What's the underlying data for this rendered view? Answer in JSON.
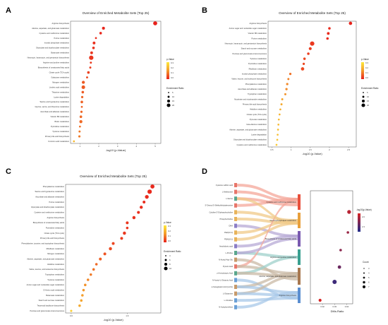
{
  "chart_data": [
    {
      "panel": "A",
      "type": "scatter",
      "title": "Overview of Enriched Metabolite Sets (Top 25)",
      "xlabel": "-log10 (p-Value)",
      "ylabel": "",
      "xlim": [
        0.5,
        5.3
      ],
      "xticks": [
        1,
        2,
        3,
        4,
        5
      ],
      "grid": false,
      "legend_position": "right",
      "color_legend": {
        "title": "p-Value",
        "ticks": [
          "0.3",
          "0.2",
          "0.1",
          "0.0"
        ]
      },
      "size_legend": {
        "title": "Enrichment Ratio",
        "ticks": [
          "5",
          "10",
          "15",
          "20"
        ]
      },
      "categories": [
        "Arginine biosynthesis",
        "Alanine, aspartate, and glutamate metabolism",
        "Cysteine and methionine metabolism",
        "Purine metabolism",
        "Inositol phosphate metabolism",
        "Glyoxylate and dicarboxylate metabolism",
        "Butanoate metabolism",
        "Neomycin, kanamycin, and gentamicin biosynthesis",
        "Arginine and proline metabolism",
        "Biosynthesis of unsaturated fatty acids",
        "Citrate cycle (TCA cycle)",
        "Galactose metabolism",
        "Nitrogen metabolism",
        "Linoleic acid metabolism",
        "Thiamine metabolism",
        "Lysine degradation",
        "Taurine and hypotaurine metabolism",
        "Glycine, serine, and threonine metabolism",
        "Ascorbate and aldarate metabolism",
        "Vitamin B6 metabolism",
        "Biotin metabolism",
        "Pyrimidine metabolism",
        "Tyrosine metabolism",
        "Primary bile acid biosynthesis",
        "D-Amino acid metabolism"
      ],
      "x": [
        5.0,
        2.25,
        2.1,
        1.85,
        1.75,
        1.72,
        1.62,
        1.6,
        1.58,
        1.55,
        1.45,
        1.38,
        1.18,
        1.18,
        1.15,
        1.12,
        1.1,
        1.1,
        1.08,
        1.05,
        1.05,
        1.0,
        0.98,
        0.97,
        0.68
      ],
      "p_value": [
        0.0,
        0.005,
        0.008,
        0.015,
        0.018,
        0.02,
        0.025,
        0.025,
        0.03,
        0.035,
        0.04,
        0.05,
        0.07,
        0.07,
        0.07,
        0.08,
        0.08,
        0.08,
        0.085,
        0.09,
        0.09,
        0.1,
        0.11,
        0.11,
        0.21
      ],
      "enrichment_ratio": [
        17,
        10,
        8,
        4,
        9,
        8,
        9,
        19,
        5,
        5,
        8,
        5,
        11,
        14,
        8,
        6,
        8,
        4,
        6,
        8,
        11,
        4,
        5,
        6,
        4
      ]
    },
    {
      "panel": "B",
      "type": "scatter",
      "title": "Overview of Enriched Metabolite Sets (Top 25)",
      "xlabel": "-log10 (p-Value)",
      "ylabel": "",
      "xlim": [
        0.4,
        2.7
      ],
      "xticks": [
        0.5,
        1.0,
        1.5,
        2.0,
        2.5
      ],
      "grid": false,
      "legend_position": "right",
      "color_legend": {
        "title": "p-Value",
        "ticks": [
          "0.3",
          "0.2",
          "0.1",
          "0.0"
        ]
      },
      "size_legend": {
        "title": "Enrichment Ratio",
        "ticks": [
          "5",
          "10",
          "15",
          "20"
        ]
      },
      "categories": [
        "Arginine biosynthesis",
        "Amino sugar and nucleotide sugar metabolism",
        "Vitamin B6 metabolism",
        "Purine metabolism",
        "Neomycin, kanamycin, and gentamicin biosynthesis",
        "Starch and sucrose metabolism",
        "Pentose and glucuronate interconversions",
        "Tyrosine metabolism",
        "Pyrimidine metabolism",
        "Riboflavin metabolism",
        "Inositol phosphate metabolism",
        "Valine, leucine, and isoleucine biosynthesis",
        "Phenylalanine metabolism",
        "Ascorbate and aldarate metabolism",
        "Tryptophan metabolism",
        "Nicotinate and nicotinamide metabolism",
        "Primary bile acid biosynthesis",
        "Histidine metabolism",
        "Citrate cycle (TCA cycle)",
        "Pyruvate metabolism",
        "beta-Alanine metabolism",
        "Alanine, aspartate, and glutamate metabolism",
        "Lysine degradation",
        "Glyoxylate and dicarboxylate metabolism",
        "Cysteine and methionine metabolism"
      ],
      "x": [
        2.55,
        2.0,
        1.97,
        1.95,
        1.55,
        1.5,
        1.45,
        1.35,
        1.33,
        1.3,
        0.98,
        0.93,
        0.9,
        0.88,
        0.85,
        0.77,
        0.75,
        0.72,
        0.7,
        0.68,
        0.67,
        0.66,
        0.65,
        0.64,
        0.62
      ],
      "p_value": [
        0.003,
        0.01,
        0.011,
        0.011,
        0.028,
        0.032,
        0.035,
        0.045,
        0.047,
        0.05,
        0.1,
        0.12,
        0.13,
        0.13,
        0.14,
        0.17,
        0.18,
        0.19,
        0.2,
        0.21,
        0.21,
        0.22,
        0.22,
        0.23,
        0.24
      ],
      "enrichment_ratio": [
        10,
        6,
        7,
        6,
        15,
        8,
        6,
        6,
        5,
        10,
        5,
        4,
        5,
        5,
        4,
        4,
        4,
        3,
        3,
        3,
        3,
        3,
        3,
        3,
        3
      ]
    },
    {
      "panel": "C",
      "type": "scatter",
      "title": "Overview of Enriched Metabolite Sets (Top 25)",
      "xlabel": "-log10 (p-Value)",
      "ylabel": "",
      "xlim": [
        0.5,
        2.2
      ],
      "xticks": [
        0.6,
        1.6
      ],
      "grid": false,
      "legend_position": "right",
      "color_legend": {
        "title": "p-Value",
        "ticks": [
          "0.3",
          "0.2",
          "0.1",
          "0.0"
        ]
      },
      "size_legend": {
        "title": "Enrichment Ratio",
        "ticks": [
          "4",
          "6",
          "8",
          "10"
        ]
      },
      "categories": [
        "Phenylalanine metabolism",
        "Taurine and hypotaurine metabolism",
        "Ascorbate and aldarate metabolism",
        "Purine metabolism",
        "Glyoxylate and dicarboxylate metabolism",
        "Cysteine and methionine metabolism",
        "Arginine biosynthesis",
        "Biosynthesis of unsaturated fatty acids",
        "Pyrimidine metabolism",
        "Citrate cycle (TCA cycle)",
        "Primary bile acid biosynthesis",
        "Phenylalanine, tyrosine, and tryptophan biosynthesis",
        "Riboflavin metabolism",
        "Nitrogen metabolism",
        "Alanine, aspartate, and glutamate metabolism",
        "Histidine metabolism",
        "Valine, leucine, and isoleucine biosynthesis",
        "Tryptophan metabolism",
        "Tyrosine metabolism",
        "Amino sugar and nucleotide sugar metabolism",
        "D-Amino acid metabolism",
        "Butanoate metabolism",
        "Starch and sucrose metabolism",
        "Terpenoid backbone biosynthesis",
        "Pentose and glucuronate interconversions"
      ],
      "x": [
        2.05,
        2.0,
        1.95,
        1.9,
        1.85,
        1.8,
        1.72,
        1.6,
        1.6,
        1.55,
        1.5,
        1.35,
        1.3,
        1.2,
        1.12,
        1.05,
        1.0,
        0.95,
        0.9,
        0.85,
        0.82,
        0.8,
        0.78,
        0.75,
        0.6
      ],
      "p_value": [
        0.009,
        0.01,
        0.011,
        0.013,
        0.014,
        0.016,
        0.019,
        0.025,
        0.025,
        0.028,
        0.032,
        0.045,
        0.05,
        0.063,
        0.076,
        0.089,
        0.1,
        0.11,
        0.126,
        0.14,
        0.15,
        0.16,
        0.17,
        0.18,
        0.25
      ],
      "enrichment_ratio": [
        9,
        10,
        8,
        5,
        6,
        5,
        6,
        5,
        4,
        6,
        5,
        5,
        6,
        5,
        5,
        4,
        4,
        4,
        4,
        4,
        4,
        4,
        4,
        4,
        3
      ]
    },
    {
      "panel": "D",
      "type": "sankey_scatter",
      "xlabel": "DMs.Ratio",
      "ylabel": "",
      "xlim": [
        0.01,
        0.045
      ],
      "xticks": [
        "0.02",
        "0.03",
        "0.04"
      ],
      "color_legend": {
        "title": "-log10(p-Value)",
        "ticks": [
          "2.0",
          "1.5"
        ]
      },
      "size_legend": {
        "title": "Count",
        "ticks": [
          "3",
          "4",
          "5",
          "6",
          "7"
        ]
      },
      "metabolites": [
        "Cysteine sulfinic acid",
        "L-Methionine",
        "L-Serine",
        "5'-Deoxy-5'-(Methylthio)adenosine",
        "Cytidine 5'-Diphosphocholine",
        "Phosphocholine",
        "DHA",
        "PEA(16:1)",
        "PEA(18:1)",
        "Arachidonic acid",
        "L-Proline",
        "N-Acetyl-Asp-Glu",
        "Pyruvic Acid",
        "γ-Aminobutyric Acid",
        "N-Acetyl-L-Glutamic Acid",
        "α-Ketoglutaric Acid (α-KG)",
        "L-Glutamine",
        "L-Citrulline",
        "N-Acetylornithine"
      ],
      "pathways": [
        "Cysteine and methionine metabolism",
        "Glycerophospholipid metabolism",
        "Biosynthesis of unsaturated fatty acids",
        "Arginine and proline metabolism",
        "Alanine, aspartate, and glutamate metabolism",
        "Arginine biosynthesis"
      ],
      "links": [
        [
          0,
          0
        ],
        [
          1,
          0
        ],
        [
          2,
          0
        ],
        [
          3,
          0
        ],
        [
          4,
          1
        ],
        [
          5,
          1
        ],
        [
          6,
          2
        ],
        [
          7,
          1
        ],
        [
          8,
          1
        ],
        [
          9,
          2
        ],
        [
          10,
          3
        ],
        [
          11,
          4
        ],
        [
          12,
          0
        ],
        [
          12,
          4
        ],
        [
          13,
          3
        ],
        [
          13,
          4
        ],
        [
          14,
          5
        ],
        [
          15,
          4
        ],
        [
          15,
          5
        ],
        [
          16,
          4
        ],
        [
          16,
          5
        ],
        [
          17,
          5
        ],
        [
          18,
          5
        ],
        [
          10,
          2
        ],
        [
          2,
          1
        ]
      ],
      "dms_ratio": [
        0.042,
        0.041,
        0.035,
        0.034,
        0.03,
        0.018
      ],
      "neg_log10_p": [
        2.0,
        1.9,
        1.85,
        1.75,
        1.6,
        2.1
      ],
      "count": [
        6,
        3,
        3,
        5,
        7,
        4
      ]
    }
  ]
}
